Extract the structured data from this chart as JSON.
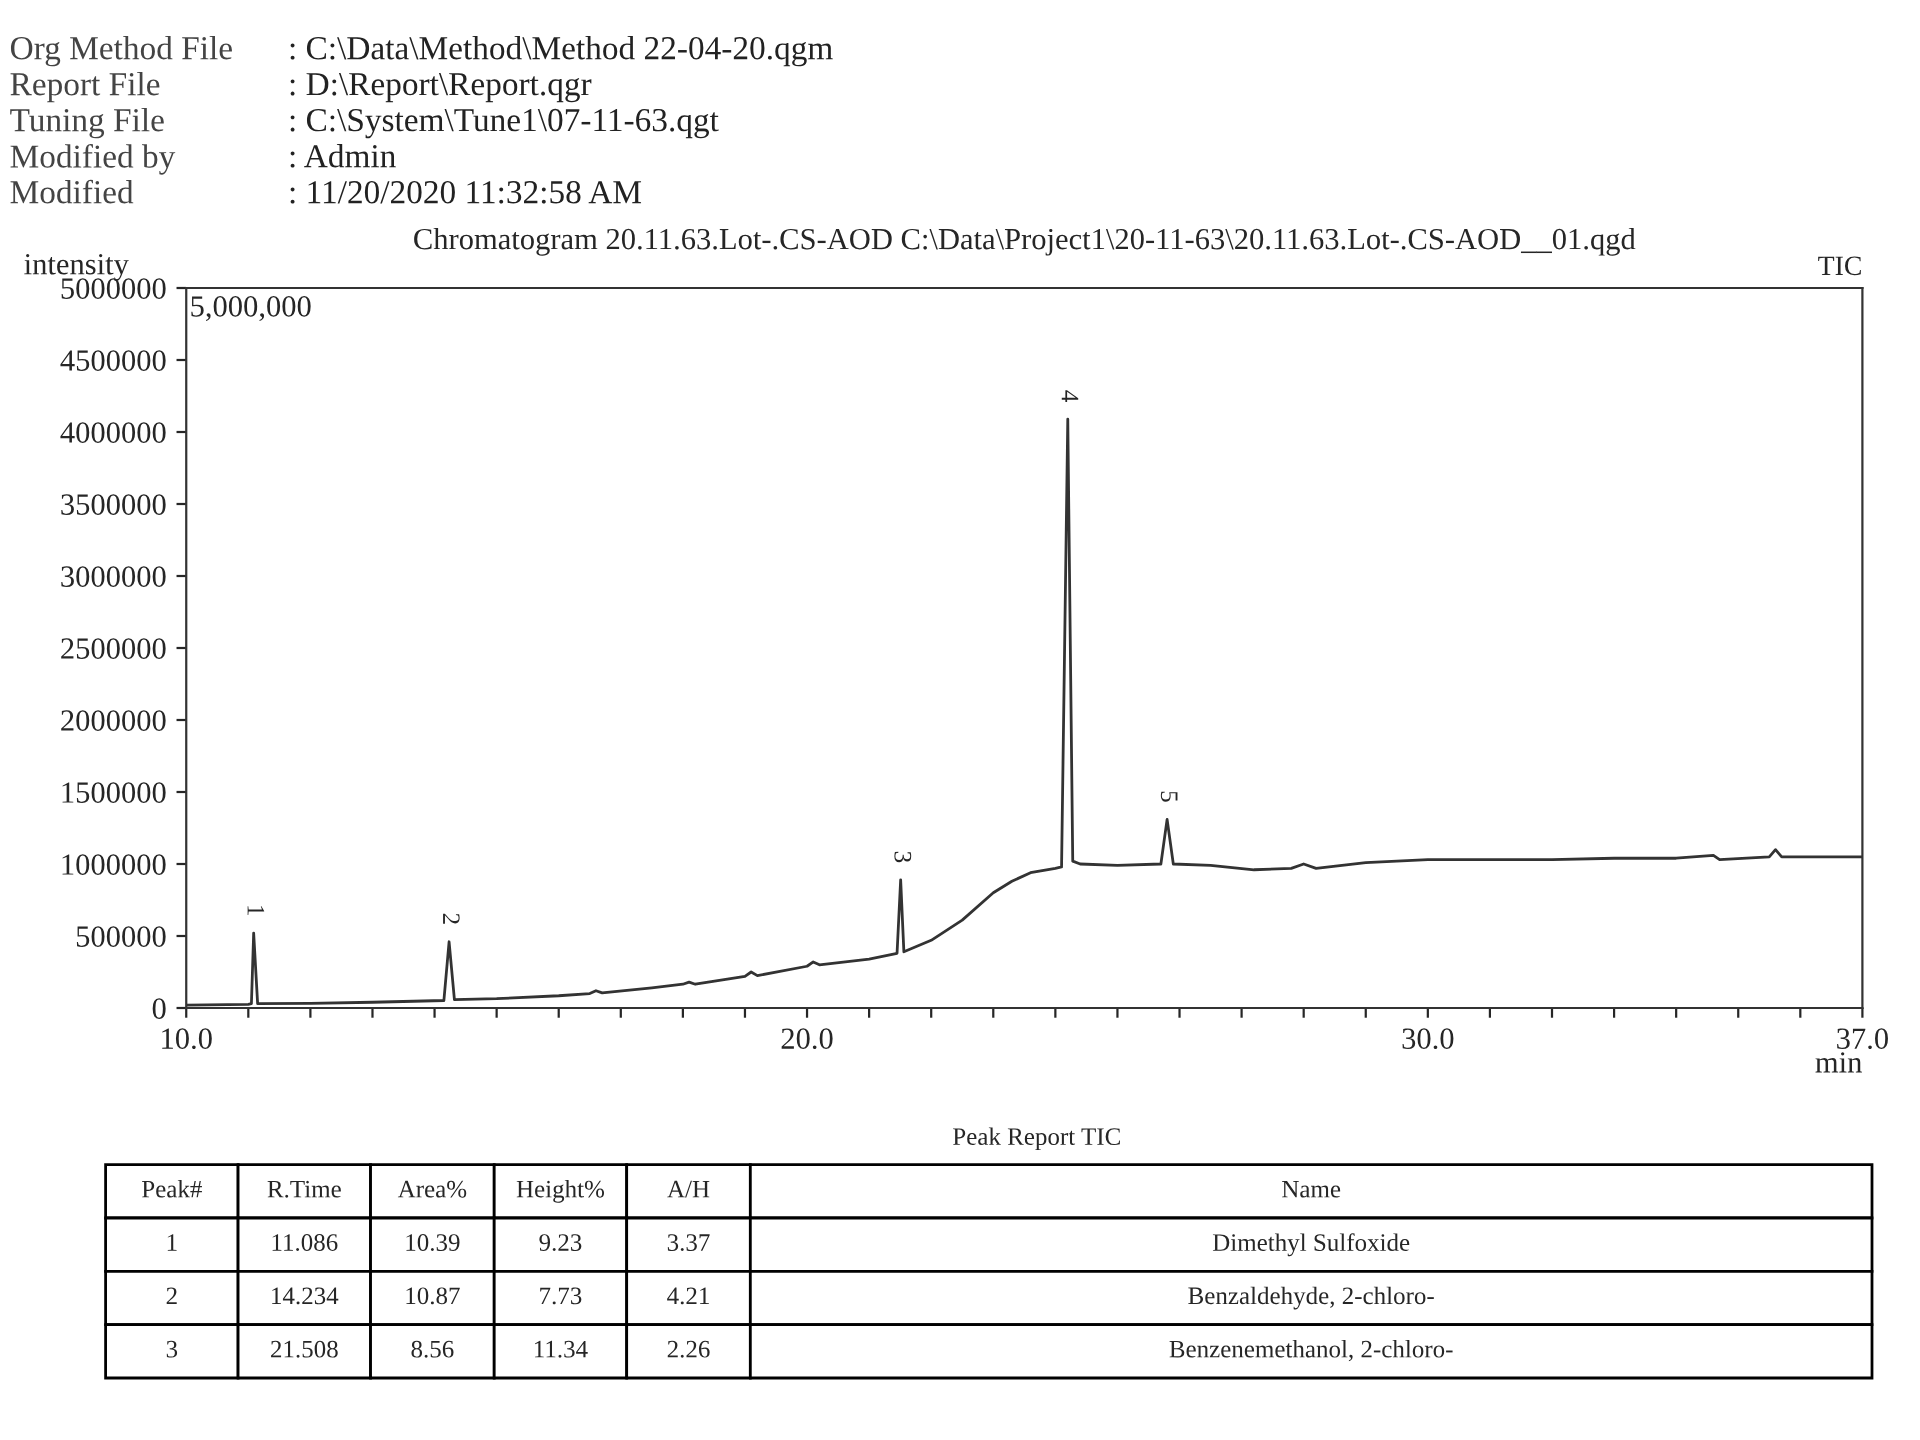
{
  "chart_data": {
    "type": "line",
    "title": "Chromatogram 20.11.63.Lot-.CS-AOD C:\\Data\\Project1\\20-11-63\\20.11.63.Lot-.CS-AOD__01.qgd",
    "ylabel": "intensity",
    "xlabel": "min",
    "x": [
      10.0,
      11.0,
      11.05,
      11.086,
      11.15,
      12.0,
      13.0,
      14.15,
      14.234,
      14.32,
      15.0,
      16.0,
      16.5,
      16.6,
      16.7,
      17.5,
      18.0,
      18.1,
      18.2,
      19.0,
      19.1,
      19.2,
      20.0,
      20.1,
      20.2,
      21.0,
      21.45,
      21.508,
      21.56,
      22.0,
      22.5,
      23.0,
      23.3,
      23.6,
      24.0,
      24.1,
      24.2,
      24.28,
      24.4,
      25.0,
      25.7,
      25.8,
      25.9,
      26.5,
      27.2,
      27.8,
      28.0,
      28.2,
      29.0,
      30.0,
      32.0,
      33.0,
      34.0,
      34.6,
      34.7,
      35.5,
      35.6,
      35.7,
      37.0
    ],
    "series": [
      {
        "color": "#333333",
        "values": [
          20000,
          25000,
          30000,
          520000,
          30000,
          32000,
          40000,
          52000,
          460000,
          58000,
          65000,
          85000,
          100000,
          120000,
          105000,
          140000,
          165000,
          180000,
          165000,
          220000,
          250000,
          225000,
          290000,
          320000,
          300000,
          340000,
          380000,
          890000,
          390000,
          470000,
          610000,
          800000,
          880000,
          940000,
          970000,
          980000,
          4090000,
          1020000,
          1000000,
          990000,
          1000000,
          1310000,
          1000000,
          990000,
          960000,
          970000,
          1000000,
          970000,
          1010000,
          1030000,
          1030000,
          1040000,
          1040000,
          1060000,
          1030000,
          1050000,
          1100000,
          1050000,
          1050000
        ]
      }
    ],
    "xlim": [
      10.0,
      37.0
    ],
    "xticks": [
      {
        "value": 10,
        "label": "10.0"
      },
      {
        "value": 11,
        "label": null
      },
      {
        "value": 12,
        "label": null
      },
      {
        "value": 13,
        "label": null
      },
      {
        "value": 14,
        "label": null
      },
      {
        "value": 15,
        "label": null
      },
      {
        "value": 16,
        "label": null
      },
      {
        "value": 17,
        "label": null
      },
      {
        "value": 18,
        "label": null
      },
      {
        "value": 19,
        "label": null
      },
      {
        "value": 20,
        "label": "20.0"
      },
      {
        "value": 21,
        "label": null
      },
      {
        "value": 22,
        "label": null
      },
      {
        "value": 23,
        "label": null
      },
      {
        "value": 24,
        "label": null
      },
      {
        "value": 25,
        "label": null
      },
      {
        "value": 26,
        "label": null
      },
      {
        "value": 27,
        "label": null
      },
      {
        "value": 28,
        "label": null
      },
      {
        "value": 29,
        "label": null
      },
      {
        "value": 30,
        "label": "30.0"
      },
      {
        "value": 31,
        "label": null
      },
      {
        "value": 32,
        "label": null
      },
      {
        "value": 33,
        "label": null
      },
      {
        "value": 34,
        "label": null
      },
      {
        "value": 35,
        "label": null
      },
      {
        "value": 36,
        "label": null
      },
      {
        "value": 37,
        "label": "37.0"
      }
    ],
    "ylim": [
      0,
      5000000
    ],
    "yticks": [
      0,
      500000,
      1000000,
      1500000,
      2000000,
      2500000,
      3000000,
      3500000,
      4000000,
      4500000,
      5000000
    ],
    "grid": false,
    "legend": false,
    "marker": "none",
    "line_style": "solid",
    "annotations": [
      "Org Method File",
      ": C:\\Data\\Method\\Method 22-04-20.qgm",
      "Report File",
      ": D:\\Report\\Report.qgr",
      "Tuning File",
      ": C:\\System\\Tune1\\07-11-63.qgt",
      "Modified by",
      ": Admin",
      "Modified",
      ": 11/20/2020 11:32:58 AM",
      "TIC",
      "5,000,000",
      {
        "text": "1",
        "x": 11.086,
        "y": 520000
      },
      {
        "text": "2",
        "x": 14.234,
        "y": 460000
      },
      {
        "text": "3",
        "x": 21.508,
        "y": 890000
      },
      {
        "text": "4",
        "x": 24.2,
        "y": 4090000
      },
      {
        "text": "5",
        "x": 25.8,
        "y": 1310000
      },
      "Peak Report TIC",
      "Peak#",
      "R.Time",
      "Area%",
      "Height%",
      "A/H",
      "Name",
      "1",
      "11.086",
      "10.39",
      "9.23",
      "3.37",
      "Dimethyl Sulfoxide",
      "2",
      "14.234",
      "10.87",
      "7.73",
      "4.21",
      "Benzaldehyde, 2-chloro-",
      "3",
      "21.508",
      "8.56",
      "11.34",
      "2.26",
      "Benzenemethanol, 2-chloro-"
    ]
  }
}
